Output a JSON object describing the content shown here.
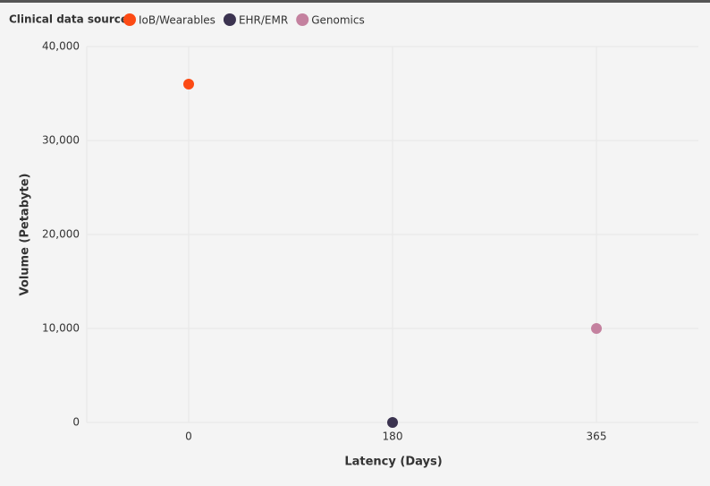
{
  "chart_data": {
    "type": "scatter",
    "legend_title": "Clinical data source",
    "legend_position": "top-left",
    "xlabel": "Latency (Days)",
    "ylabel": "Volume (Petabyte)",
    "categories": [
      "0",
      "180",
      "365"
    ],
    "series": [
      {
        "name": "IoB/Wearables",
        "color": "#fc4a14",
        "values": [
          36000,
          null,
          null
        ]
      },
      {
        "name": "EHR/EMR",
        "color": "#3b3350",
        "values": [
          null,
          0,
          null
        ]
      },
      {
        "name": "Genomics",
        "color": "#c4819f",
        "values": [
          null,
          null,
          10000
        ]
      }
    ],
    "ylim": [
      0,
      40000
    ],
    "yticks": [
      0,
      {
        "value": 10000,
        "label": "10,000"
      },
      {
        "value": 20000,
        "label": "20,000"
      },
      {
        "value": 30000,
        "label": "30,000"
      },
      {
        "value": 40000,
        "label": "40,000"
      }
    ],
    "grid": true
  }
}
